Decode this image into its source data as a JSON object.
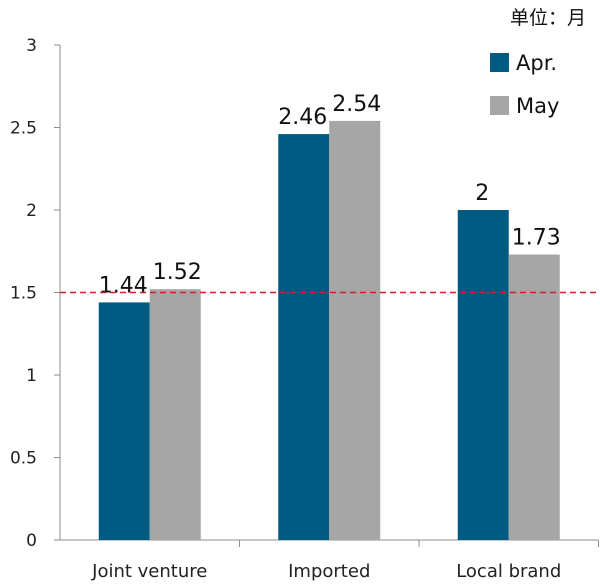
{
  "chart_data": {
    "type": "bar",
    "unit_label": "单位：月",
    "categories": [
      "Joint venture",
      "Imported",
      "Local brand"
    ],
    "series": [
      {
        "name": "Apr.",
        "color": "#005b82",
        "values": [
          1.44,
          2.46,
          2
        ],
        "labels": [
          "1.44",
          "2.46",
          "2"
        ]
      },
      {
        "name": "May",
        "color": "#a6a6a6",
        "values": [
          1.52,
          2.54,
          1.73
        ],
        "labels": [
          "1.52",
          "2.54",
          "1.73"
        ]
      }
    ],
    "ylim": [
      0,
      3
    ],
    "yticks": [
      0,
      0.5,
      1,
      1.5,
      2,
      2.5,
      3
    ],
    "ytick_labels": [
      "0",
      "0.5",
      "1",
      "1.5",
      "2",
      "2.5",
      "3"
    ],
    "reference_line": {
      "value": 1.5,
      "color": "#d0202a",
      "style": "dashed"
    },
    "grid": false,
    "legend_position": "top-right"
  }
}
